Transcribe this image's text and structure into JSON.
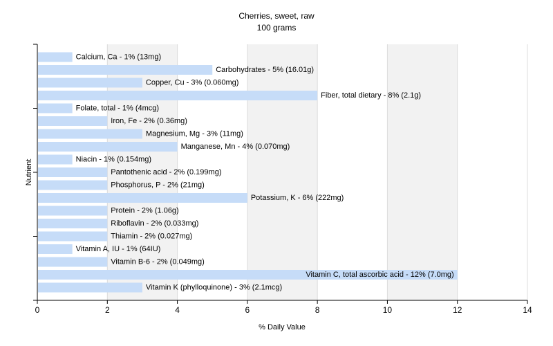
{
  "chart_data": {
    "type": "bar",
    "orientation": "horizontal",
    "title": "Cherries, sweet, raw",
    "subtitle": "100 grams",
    "xlabel": "% Daily Value",
    "ylabel": "Nutrient",
    "xlim": [
      0,
      14
    ],
    "xticks": [
      0,
      2,
      4,
      6,
      8,
      10,
      12,
      14
    ],
    "grid": true,
    "bar_color": "#c6dcf8",
    "grid_band_color": "#f2f2f2",
    "categories": [
      "Calcium, Ca",
      "Carbohydrates",
      "Copper, Cu",
      "Fiber, total dietary",
      "Folate, total",
      "Iron, Fe",
      "Magnesium, Mg",
      "Manganese, Mn",
      "Niacin",
      "Pantothenic acid",
      "Phosphorus, P",
      "Potassium, K",
      "Protein",
      "Riboflavin",
      "Thiamin",
      "Vitamin A, IU",
      "Vitamin B-6",
      "Vitamin C, total ascorbic acid",
      "Vitamin K (phylloquinone)"
    ],
    "values": [
      1,
      5,
      3,
      8,
      1,
      2,
      3,
      4,
      1,
      2,
      2,
      6,
      2,
      2,
      2,
      1,
      2,
      12,
      3
    ],
    "labels": [
      "Calcium, Ca - 1% (13mg)",
      "Carbohydrates - 5% (16.01g)",
      "Copper, Cu - 3% (0.060mg)",
      "Fiber, total dietary - 8% (2.1g)",
      "Folate, total - 1% (4mcg)",
      "Iron, Fe - 2% (0.36mg)",
      "Magnesium, Mg - 3% (11mg)",
      "Manganese, Mn - 4% (0.070mg)",
      "Niacin - 1% (0.154mg)",
      "Pantothenic acid - 2% (0.199mg)",
      "Phosphorus, P - 2% (21mg)",
      "Potassium, K - 6% (222mg)",
      "Protein - 2% (1.06g)",
      "Riboflavin - 2% (0.033mg)",
      "Thiamin - 2% (0.027mg)",
      "Vitamin A, IU - 1% (64IU)",
      "Vitamin B-6 - 2% (0.049mg)",
      "Vitamin C, total ascorbic acid - 12% (7.0mg)",
      "Vitamin K (phylloquinone) - 3% (2.1mcg)"
    ]
  }
}
